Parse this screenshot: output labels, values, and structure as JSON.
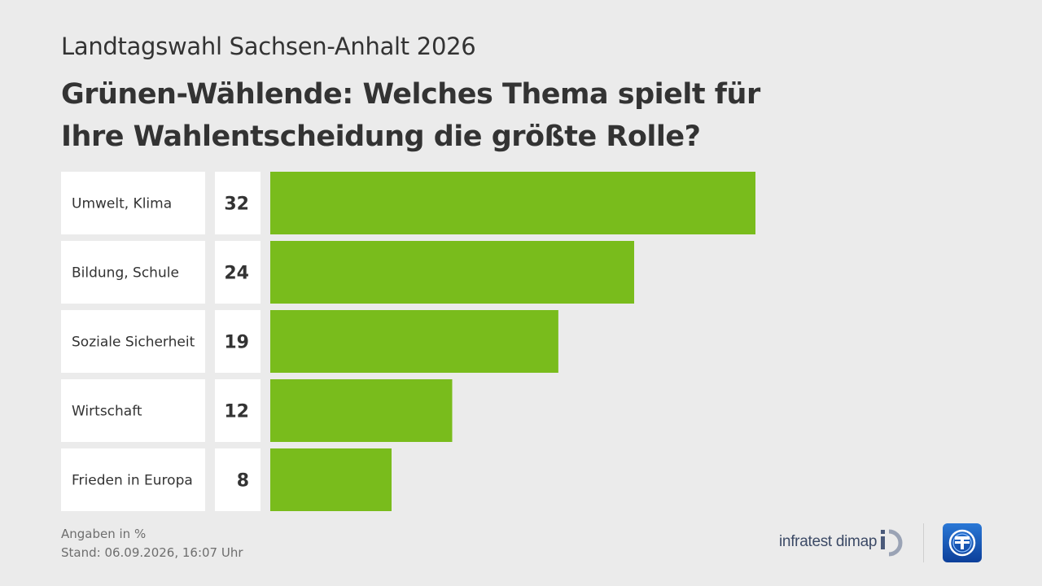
{
  "header": {
    "subtitle": "Landtagswahl Sachsen-Anhalt 2026",
    "title": "Grünen-Wählende: Welches Thema spielt für Ihre Wahlentscheidung die größte Rolle?"
  },
  "chart_data": {
    "type": "bar",
    "orientation": "horizontal",
    "categories": [
      "Umwelt, Klima",
      "Bildung, Schule",
      "Soziale Sicherheit",
      "Wirtschaft",
      "Frieden in Europa"
    ],
    "values": [
      32,
      24,
      19,
      12,
      8
    ],
    "unit": "%",
    "bar_color": "#79bc1c",
    "grid": false,
    "legend": "none"
  },
  "footer": {
    "note": "Angaben in %",
    "stand": "Stand:  06.09.2026, 16:07 Uhr",
    "brand": "infratest dimap"
  },
  "icons": {
    "infratest": "infratest-dimap-logo-icon",
    "broadcaster": "ard-logo-icon"
  }
}
